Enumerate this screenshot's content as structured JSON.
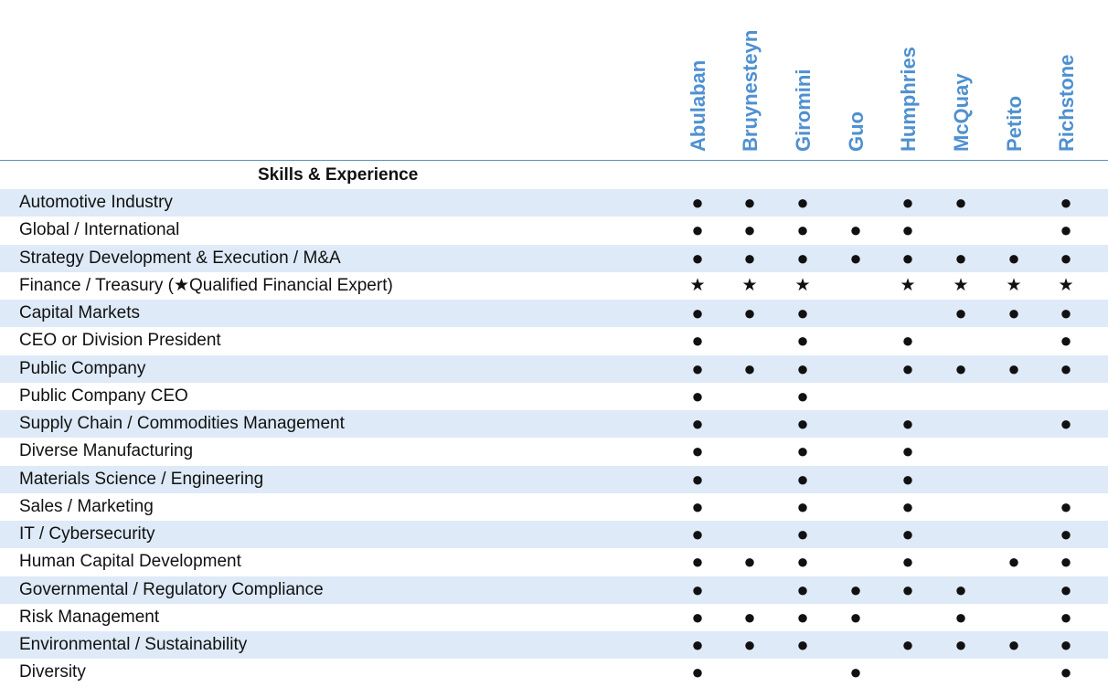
{
  "directors": [
    "Abulaban",
    "Bruynesteyn",
    "Giromini",
    "Guo",
    "Humphries",
    "McQuay",
    "Petito",
    "Richstone"
  ],
  "section_title": "Skills & Experience",
  "marks": {
    "dot": "●",
    "star": "★"
  },
  "rows": [
    {
      "label": "Automotive Industry",
      "cells": [
        "dot",
        "dot",
        "dot",
        "",
        "dot",
        "dot",
        "",
        "dot"
      ]
    },
    {
      "label": "Global / International",
      "cells": [
        "dot",
        "dot",
        "dot",
        "dot",
        "dot",
        "",
        "",
        "dot"
      ]
    },
    {
      "label": "Strategy Development & Execution / M&A",
      "cells": [
        "dot",
        "dot",
        "dot",
        "dot",
        "dot",
        "dot",
        "dot",
        "dot"
      ]
    },
    {
      "label": "Finance / Treasury (★Qualified Financial Expert)",
      "cells": [
        "star",
        "star",
        "star",
        "",
        "star",
        "star",
        "star",
        "star"
      ]
    },
    {
      "label": "Capital Markets",
      "cells": [
        "dot",
        "dot",
        "dot",
        "",
        "",
        "dot",
        "dot",
        "dot"
      ]
    },
    {
      "label": "CEO or Division President",
      "cells": [
        "dot",
        "",
        "dot",
        "",
        "dot",
        "",
        "",
        "dot"
      ]
    },
    {
      "label": "Public Company",
      "cells": [
        "dot",
        "dot",
        "dot",
        "",
        "dot",
        "dot",
        "dot",
        "dot"
      ]
    },
    {
      "label": "Public Company CEO",
      "cells": [
        "dot",
        "",
        "dot",
        "",
        "",
        "",
        "",
        ""
      ]
    },
    {
      "label": "Supply Chain / Commodities Management",
      "cells": [
        "dot",
        "",
        "dot",
        "",
        "dot",
        "",
        "",
        "dot"
      ]
    },
    {
      "label": "Diverse Manufacturing",
      "cells": [
        "dot",
        "",
        "dot",
        "",
        "dot",
        "",
        "",
        ""
      ]
    },
    {
      "label": "Materials Science / Engineering",
      "cells": [
        "dot",
        "",
        "dot",
        "",
        "dot",
        "",
        "",
        ""
      ]
    },
    {
      "label": "Sales / Marketing",
      "cells": [
        "dot",
        "",
        "dot",
        "",
        "dot",
        "",
        "",
        "dot"
      ]
    },
    {
      "label": "IT / Cybersecurity",
      "cells": [
        "dot",
        "",
        "dot",
        "",
        "dot",
        "",
        "",
        "dot"
      ]
    },
    {
      "label": "Human Capital Development",
      "cells": [
        "dot",
        "dot",
        "dot",
        "",
        "dot",
        "",
        "dot",
        "dot"
      ]
    },
    {
      "label": "Governmental / Regulatory Compliance",
      "cells": [
        "dot",
        "",
        "dot",
        "dot",
        "dot",
        "dot",
        "",
        "dot"
      ]
    },
    {
      "label": "Risk Management",
      "cells": [
        "dot",
        "dot",
        "dot",
        "dot",
        "",
        "dot",
        "",
        "dot"
      ]
    },
    {
      "label": "Environmental / Sustainability",
      "cells": [
        "dot",
        "dot",
        "dot",
        "",
        "dot",
        "dot",
        "dot",
        "dot"
      ]
    },
    {
      "label": "Diversity",
      "cells": [
        "dot",
        "",
        "",
        "dot",
        "",
        "",
        "",
        "dot"
      ]
    }
  ]
}
